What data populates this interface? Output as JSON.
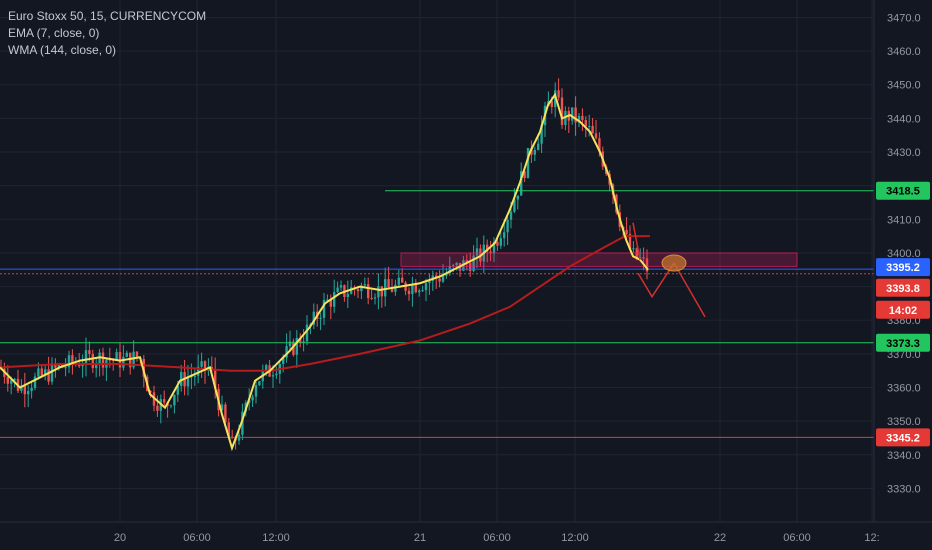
{
  "legend": {
    "symbol": "Euro Stoxx 50, 15, CURRENCYCOM",
    "ema": "EMA (7, close, 0)",
    "wma": "WMA (144, close, 0)"
  },
  "colors": {
    "background": "#131722",
    "grid": "#1f2433",
    "candle_up": "#26a69a",
    "candle_down": "#ef5350",
    "ema": "#f5e35b",
    "wma": "#b71c1c",
    "support_line": "#22c55e",
    "support_zone": "#e91e63",
    "low_line": "#e53935",
    "current_line": "#2962ff",
    "projection": "#d32f2f"
  },
  "chart_data": {
    "type": "candlestick",
    "title": "Euro Stoxx 50, 15, CURRENCYCOM",
    "ylim": [
      3323,
      3474
    ],
    "y_ticks": [
      3330.0,
      3340.0,
      3350.0,
      3360.0,
      3370.0,
      3380.0,
      3390.0,
      3400.0,
      3410.0,
      3420.0,
      3430.0,
      3440.0,
      3450.0,
      3460.0,
      3470.0
    ],
    "x_ticks": [
      "20",
      "06:00",
      "12:00",
      "21",
      "06:00",
      "12:00",
      "22",
      "06:00",
      "12:"
    ],
    "grid": true,
    "series": [
      {
        "name": "EMA (7, close, 0)",
        "points": [
          [
            0,
            3366
          ],
          [
            20,
            3360
          ],
          [
            40,
            3363
          ],
          [
            60,
            3366
          ],
          [
            80,
            3368
          ],
          [
            100,
            3369
          ],
          [
            120,
            3368
          ],
          [
            140,
            3369
          ],
          [
            150,
            3358
          ],
          [
            165,
            3354
          ],
          [
            180,
            3362
          ],
          [
            195,
            3364
          ],
          [
            210,
            3366
          ],
          [
            222,
            3352
          ],
          [
            232,
            3342
          ],
          [
            242,
            3350
          ],
          [
            255,
            3362
          ],
          [
            270,
            3365
          ],
          [
            290,
            3371
          ],
          [
            310,
            3378
          ],
          [
            325,
            3385
          ],
          [
            340,
            3388
          ],
          [
            360,
            3390
          ],
          [
            380,
            3389
          ],
          [
            400,
            3390
          ],
          [
            420,
            3391
          ],
          [
            440,
            3393
          ],
          [
            460,
            3396
          ],
          [
            480,
            3399
          ],
          [
            495,
            3403
          ],
          [
            510,
            3413
          ],
          [
            520,
            3421
          ],
          [
            530,
            3430
          ],
          [
            540,
            3436
          ],
          [
            548,
            3444
          ],
          [
            555,
            3447
          ],
          [
            562,
            3440
          ],
          [
            570,
            3441
          ],
          [
            580,
            3439
          ],
          [
            590,
            3436
          ],
          [
            600,
            3430
          ],
          [
            610,
            3422
          ],
          [
            618,
            3412
          ],
          [
            626,
            3404
          ],
          [
            633,
            3399
          ],
          [
            640,
            3398
          ],
          [
            648,
            3395
          ]
        ]
      },
      {
        "name": "WMA (144, close, 0)",
        "points": [
          [
            0,
            3366
          ],
          [
            60,
            3367
          ],
          [
            120,
            3367
          ],
          [
            180,
            3366
          ],
          [
            230,
            3365
          ],
          [
            270,
            3365
          ],
          [
            310,
            3367
          ],
          [
            360,
            3370
          ],
          [
            420,
            3374
          ],
          [
            470,
            3379
          ],
          [
            510,
            3384
          ],
          [
            540,
            3390
          ],
          [
            570,
            3396
          ],
          [
            600,
            3401
          ],
          [
            625,
            3405
          ],
          [
            650,
            3405
          ]
        ]
      }
    ],
    "horizontal_lines": [
      {
        "price": 3418.5,
        "label": "3418.5",
        "style": "support_line"
      },
      {
        "price": 3395.2,
        "label": "3395.2",
        "style": "current_line"
      },
      {
        "price": 3393.8,
        "label": "3393.8",
        "style": "low_line"
      },
      {
        "price": 3373.3,
        "label": "3373.3",
        "style": "support_line"
      },
      {
        "price": 3345.2,
        "label": "3345.2",
        "style": "low_line"
      }
    ],
    "countdown": "14:02",
    "zone": {
      "price_top": 3400.0,
      "price_bottom": 3396.0
    },
    "projection": [
      [
        638,
        3394
      ],
      [
        652,
        3387
      ],
      [
        674,
        3397
      ],
      [
        705,
        3381
      ]
    ],
    "candles": []
  },
  "price_labels": {
    "p3418": "3418.5",
    "p3395": "3395.2",
    "p3393": "3393.8",
    "countdown": "14:02",
    "p3373": "3373.3",
    "p3345": "3345.2"
  }
}
